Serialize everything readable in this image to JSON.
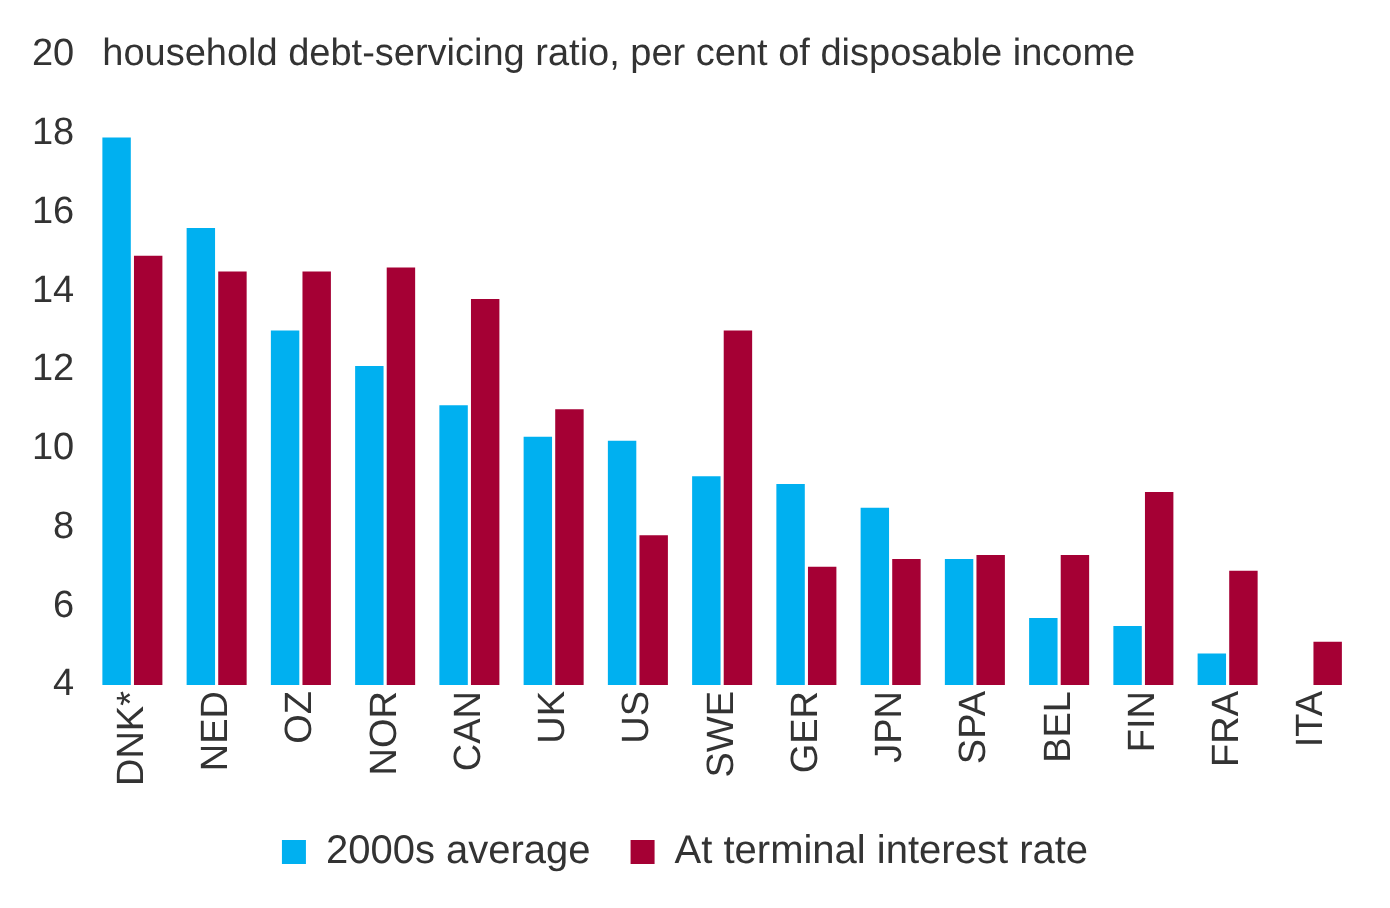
{
  "chart_data": {
    "type": "bar",
    "title": "household debt-servicing ratio, per cent of disposable income",
    "categories": [
      "DNK*",
      "NED",
      "OZ",
      "NOR",
      "CAN",
      "UK",
      "US",
      "SWE",
      "GER",
      "JPN",
      "SPA",
      "BEL",
      "FIN",
      "FRA",
      "ITA"
    ],
    "series": [
      {
        "name": "2000s average",
        "color": "#00b0f0",
        "values": [
          17.9,
          15.6,
          13.0,
          12.1,
          11.1,
          10.3,
          10.2,
          9.3,
          9.1,
          8.5,
          7.2,
          5.7,
          5.5,
          4.8,
          null
        ]
      },
      {
        "name": "At terminal interest rate",
        "color": "#a50034",
        "values": [
          14.9,
          14.5,
          14.5,
          14.6,
          13.8,
          11.0,
          7.8,
          13.0,
          7.0,
          7.2,
          7.3,
          7.3,
          8.9,
          6.9,
          5.1
        ]
      }
    ],
    "ylim": [
      4,
      20
    ],
    "yticks": [
      4,
      6,
      8,
      10,
      12,
      14,
      16,
      18,
      20
    ],
    "grid": false,
    "legend": "bottom"
  }
}
